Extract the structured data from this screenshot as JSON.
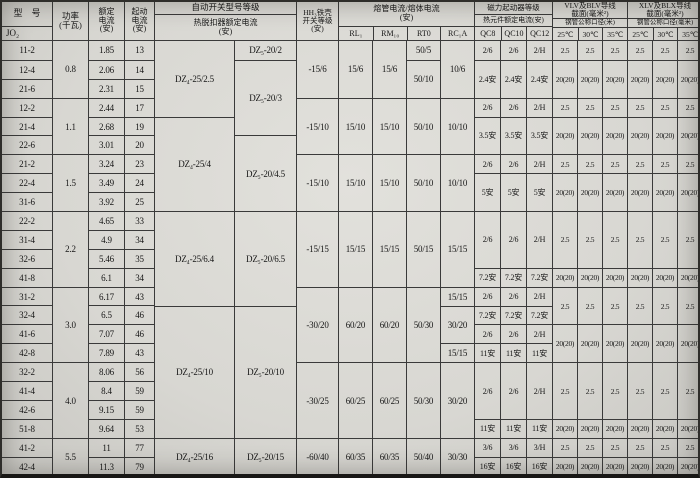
{
  "accent_colors": {
    "paper": "#d8d7d2",
    "line": "#3a3a3a",
    "ink": "#161616"
  },
  "header": {
    "model_title": "型　号",
    "model_sub": "JO₂",
    "power": "功率\n(千瓦)",
    "rated": "额定\n电流\n(安)",
    "start": "起动\n电流\n(安)",
    "auto_title": "自动开关型号等级",
    "auto_sub": "热脱扣器额定电流\n(安)",
    "hh3": "HH₃铁壳\n开关等级\n(安)",
    "fuse_title": "熔管电流/熔体电流\n(安)",
    "fuse_cols": [
      "RL₁",
      "RM₁₀",
      "RT0",
      "RC₁A"
    ],
    "qc_title": "磁力起动器等级",
    "qc_sub": "热元件额定电流(安)",
    "qc_cols": [
      "QC8",
      "QC10",
      "QC12"
    ],
    "vlv_title": "VLV及BLV导线\n截面(毫米²)",
    "vlv_sub": "钢管公称口径(米)",
    "xlv_title": "XLV及BLX导线\n截面(毫米²)",
    "xlv_sub": "钢管公称口径(毫米)",
    "temp_cols": [
      "25℃",
      "30℃",
      "35℃"
    ]
  },
  "body": {
    "model": [
      "11-2",
      "12-4",
      "21-6",
      "12-2",
      "21-4",
      "22-6",
      "21-2",
      "22-4",
      "31-6",
      "22-2",
      "31-4",
      "32-6",
      "41-8",
      "31-2",
      "32-4",
      "41-6",
      "42-8",
      "32-2",
      "41-4",
      "42-6",
      "51-8",
      "41-2",
      "42-4"
    ],
    "power": [
      {
        "v": "0.8",
        "span": 3
      },
      {
        "v": "1.1",
        "span": 3
      },
      {
        "v": "1.5",
        "span": 3
      },
      {
        "v": "2.2",
        "span": 4
      },
      {
        "v": "3.0",
        "span": 4
      },
      {
        "v": "4.0",
        "span": 4
      },
      {
        "v": "5.5",
        "span": 2
      }
    ],
    "rated": [
      "1.85",
      "2.06",
      "2.31",
      "2.44",
      "2.68",
      "3.01",
      "3.24",
      "3.49",
      "3.92",
      "4.65",
      "4.9",
      "5.46",
      "6.1",
      "6.17",
      "6.5",
      "7.07",
      "7.89",
      "8.06",
      "8.4",
      "9.15",
      "9.64",
      "11",
      "11.3"
    ],
    "start": [
      "13",
      "14",
      "15",
      "17",
      "19",
      "20",
      "23",
      "24",
      "25",
      "33",
      "34",
      "35",
      "34",
      "43",
      "46",
      "46",
      "43",
      "56",
      "59",
      "59",
      "53",
      "77",
      "79"
    ],
    "dz4": [
      {
        "v": "DZ₄-25/2.5",
        "span": 4
      },
      {
        "v": "DZ₄-25/4",
        "span": 5
      },
      {
        "v": "DZ₄-25/6.4",
        "span": 5
      },
      {
        "v": "DZ₄-25/10",
        "span": 7
      },
      {
        "v": "DZ₄-25/16",
        "span": 2
      }
    ],
    "dz5": [
      {
        "v": "DZ₅-20/2",
        "span": 1
      },
      {
        "v": "DZ₅-20/3",
        "span": 4
      },
      {
        "v": "DZ₅-20/4.5",
        "span": 4
      },
      {
        "v": "DZ₅-20/6.5",
        "span": 5
      },
      {
        "v": "DZ₅-20/10",
        "span": 7
      },
      {
        "v": "DZ₅-20/15",
        "span": 2
      }
    ],
    "hh3": [
      {
        "v": "-15/6",
        "span": 3
      },
      {
        "v": "-15/10",
        "span": 3
      },
      {
        "v": "-15/10",
        "span": 3
      },
      {
        "v": "-15/15",
        "span": 4
      },
      {
        "v": "-30/20",
        "span": 4
      },
      {
        "v": "-30/25",
        "span": 4
      },
      {
        "v": "-60/40",
        "span": 2
      }
    ],
    "rl1": [
      {
        "v": "15/6",
        "span": 3
      },
      {
        "v": "15/10",
        "span": 3
      },
      {
        "v": "15/10",
        "span": 3
      },
      {
        "v": "15/15",
        "span": 4
      },
      {
        "v": "60/20",
        "span": 4
      },
      {
        "v": "60/25",
        "span": 4
      },
      {
        "v": "60/35",
        "span": 2
      }
    ],
    "rm10": [
      {
        "v": "15/6",
        "span": 3
      },
      {
        "v": "15/10",
        "span": 3
      },
      {
        "v": "15/10",
        "span": 3
      },
      {
        "v": "15/15",
        "span": 4
      },
      {
        "v": "60/20",
        "span": 4
      },
      {
        "v": "60/25",
        "span": 4
      },
      {
        "v": "60/35",
        "span": 2
      }
    ],
    "rt0": [
      {
        "v": "50/5",
        "span": 1
      },
      {
        "v": "50/10",
        "span": 2
      },
      {
        "v": "50/10",
        "span": 3
      },
      {
        "v": "50/10",
        "span": 3
      },
      {
        "v": "50/15",
        "span": 4
      },
      {
        "v": "50/30",
        "span": 4
      },
      {
        "v": "50/30",
        "span": 4
      },
      {
        "v": "50/40",
        "span": 2
      }
    ],
    "rc1a": [
      {
        "v": "10/6",
        "span": 3
      },
      {
        "v": "10/10",
        "span": 3
      },
      {
        "v": "10/10",
        "span": 3
      },
      {
        "v": "15/15",
        "span": 4
      },
      {
        "v": "15/15",
        "span": 1
      },
      {
        "v": "30/20",
        "span": 2
      },
      {
        "v": "15/15",
        "span": 1
      },
      {
        "v": "30/20",
        "span": 4
      },
      {
        "v": "30/30",
        "span": 2
      }
    ],
    "qc8": [
      "2/6",
      {
        "v": "2.4安",
        "span": 2
      },
      "2/6",
      {
        "v": "3.5安",
        "span": 2
      },
      "2/6",
      {
        "v": "5安",
        "span": 2
      },
      {
        "v": "2/6",
        "span": 3
      },
      "7.2安",
      "2/6",
      "7.2安",
      "2/6",
      "11安",
      {
        "v": "2/6",
        "span": 3
      },
      "11安",
      "3/6",
      "16安"
    ],
    "qc10": [
      "2/6",
      {
        "v": "2.4安",
        "span": 2
      },
      "2/6",
      {
        "v": "3.5安",
        "span": 2
      },
      "2/6",
      {
        "v": "5安",
        "span": 2
      },
      {
        "v": "2/6",
        "span": 3
      },
      "7.2安",
      "2/6",
      "7.2安",
      "2/6",
      "11安",
      {
        "v": "2/6",
        "span": 3
      },
      "11安",
      "3/6",
      "16安"
    ],
    "qc12": [
      "2/H",
      {
        "v": "2.4安",
        "span": 2
      },
      "2/H",
      {
        "v": "3.5安",
        "span": 2
      },
      "2/H",
      {
        "v": "5安",
        "span": 2
      },
      {
        "v": "2/H",
        "span": 3
      },
      "7.2安",
      "2/H",
      "7.2安",
      "2/H",
      "11安",
      {
        "v": "2/H",
        "span": 3
      },
      "11安",
      "3/H",
      "16安"
    ],
    "wire": [
      "2.5",
      {
        "v": "20(20)",
        "span": 2
      },
      "2.5",
      {
        "v": "20(20)",
        "span": 2
      },
      "2.5",
      {
        "v": "20(20)",
        "span": 2
      },
      {
        "v": "2.5",
        "span": 3
      },
      "20(20)",
      {
        "v": "2.5",
        "span": 2
      },
      {
        "v": "20(20)",
        "span": 2
      },
      {
        "v": "2.5",
        "span": 3
      },
      "20(20)",
      "2.5",
      "20(20)"
    ]
  }
}
